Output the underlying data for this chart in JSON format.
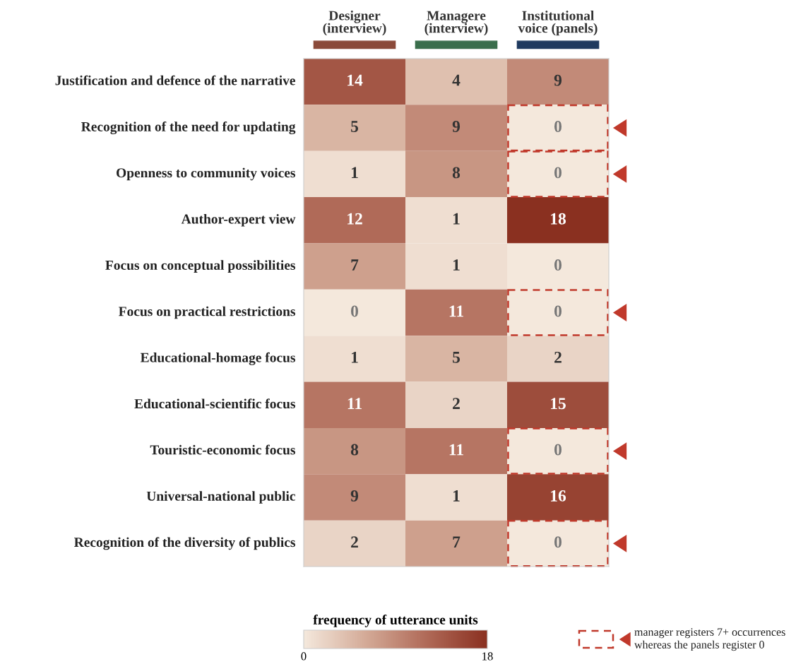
{
  "chart_data": {
    "type": "heatmap",
    "categories": [
      "Designer\n(interview)",
      "Managere\n(interview)",
      "Institutional\nvoice (panels)"
    ],
    "y_categories": [
      "Justification and defence of the narrative",
      "Recognition of the need for updating",
      "Openness to community voices",
      "Author-expert view",
      "Focus on conceptual possibilities",
      "Focus on practical restrictions",
      "Educational-homage focus",
      "Educational-scientific focus",
      "Touristic-economic focus",
      "Universal-national public",
      "Recognition of the diversity of publics"
    ],
    "cells": [
      [
        14,
        4,
        9
      ],
      [
        5,
        9,
        0
      ],
      [
        1,
        8,
        0
      ],
      [
        12,
        1,
        18
      ],
      [
        7,
        1,
        0
      ],
      [
        0,
        11,
        0
      ],
      [
        1,
        5,
        2
      ],
      [
        11,
        2,
        15
      ],
      [
        8,
        11,
        0
      ],
      [
        9,
        1,
        16
      ],
      [
        2,
        7,
        0
      ]
    ],
    "data_labels": true,
    "clim": [
      0,
      18
    ],
    "cticks": [
      0,
      18
    ],
    "clabel": "frequency of utterance units",
    "annotations": [
      "manager registers 7+ occurrences\nwhereas the panels register 0"
    ]
  }
}
